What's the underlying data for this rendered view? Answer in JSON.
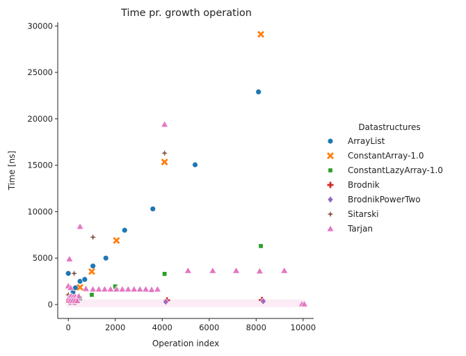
{
  "chart_data": {
    "type": "scatter",
    "title": "Time pr. growth operation",
    "xlabel": "Operation index",
    "ylabel": "Time [ns]",
    "xlim": [
      -450,
      10450
    ],
    "ylim": [
      -1500,
      30400
    ],
    "xticks": [
      0,
      2000,
      4000,
      6000,
      8000,
      10000
    ],
    "yticks": [
      0,
      5000,
      10000,
      15000,
      20000,
      25000,
      30000
    ],
    "grid": false,
    "legend": {
      "title": "Datastructures",
      "placement": "right"
    },
    "series": [
      {
        "name": "ArrayList",
        "marker": "circle",
        "color": "#1f77b4",
        "points": [
          [
            0,
            3350
          ],
          [
            100,
            800
          ],
          [
            200,
            1300
          ],
          [
            300,
            1800
          ],
          [
            500,
            2500
          ],
          [
            700,
            2700
          ],
          [
            1050,
            4150
          ],
          [
            1600,
            5000
          ],
          [
            2400,
            8000
          ],
          [
            3600,
            10300
          ],
          [
            5400,
            15050
          ],
          [
            8100,
            22900
          ]
        ]
      },
      {
        "name": "ConstantArray-1.0",
        "marker": "x",
        "color": "#ff7f0e",
        "points": [
          [
            100,
            800
          ],
          [
            500,
            1850
          ],
          [
            1000,
            3550
          ],
          [
            2050,
            6900
          ],
          [
            4100,
            15350
          ],
          [
            8200,
            29100
          ]
        ]
      },
      {
        "name": "ConstantLazyArray-1.0",
        "marker": "square",
        "color": "#2ca02c",
        "points": [
          [
            500,
            650
          ],
          [
            1000,
            1050
          ],
          [
            2000,
            1950
          ],
          [
            4100,
            3300
          ],
          [
            8200,
            6300
          ]
        ]
      },
      {
        "name": "Brodnik",
        "marker": "plus",
        "color": "#d62728",
        "points": [
          [
            50,
            300
          ],
          [
            150,
            350
          ],
          [
            300,
            300
          ],
          [
            4200,
            450
          ],
          [
            8250,
            480
          ]
        ]
      },
      {
        "name": "BrodnikPowerTwo",
        "marker": "diamond",
        "color": "#9467bd",
        "points": [
          [
            80,
            250
          ],
          [
            250,
            250
          ],
          [
            4150,
            300
          ],
          [
            8300,
            350
          ]
        ]
      },
      {
        "name": "Sitarski",
        "marker": "star",
        "color": "#8c564b",
        "points": [
          [
            0,
            1050
          ],
          [
            250,
            3350
          ],
          [
            1050,
            7250
          ],
          [
            4100,
            16300
          ],
          [
            2050,
            1700
          ]
        ]
      },
      {
        "name": "Tarjan",
        "marker": "triangle",
        "color": "#e377c2",
        "points": [
          [
            50,
            4900
          ],
          [
            0,
            2000
          ],
          [
            100,
            1800
          ],
          [
            500,
            8400
          ],
          [
            750,
            1700
          ],
          [
            1050,
            1650
          ],
          [
            1300,
            1650
          ],
          [
            1550,
            1650
          ],
          [
            1800,
            1650
          ],
          [
            2050,
            1650
          ],
          [
            2300,
            1650
          ],
          [
            2550,
            1650
          ],
          [
            2800,
            1650
          ],
          [
            3050,
            1650
          ],
          [
            3300,
            1650
          ],
          [
            3550,
            1600
          ],
          [
            3800,
            1650
          ],
          [
            4100,
            19400
          ],
          [
            5100,
            3650
          ],
          [
            6150,
            3650
          ],
          [
            7150,
            3650
          ],
          [
            8150,
            3600
          ],
          [
            9200,
            3650
          ],
          [
            9950,
            50
          ],
          [
            10050,
            50
          ],
          [
            20,
            700
          ],
          [
            120,
            900
          ],
          [
            200,
            800
          ],
          [
            300,
            850
          ],
          [
            400,
            800
          ],
          [
            450,
            900
          ],
          [
            80,
            400
          ],
          [
            180,
            400
          ],
          [
            280,
            400
          ],
          [
            380,
            400
          ]
        ],
        "dense_range": [
          0,
          10000
        ],
        "dense_value": 100
      }
    ]
  }
}
